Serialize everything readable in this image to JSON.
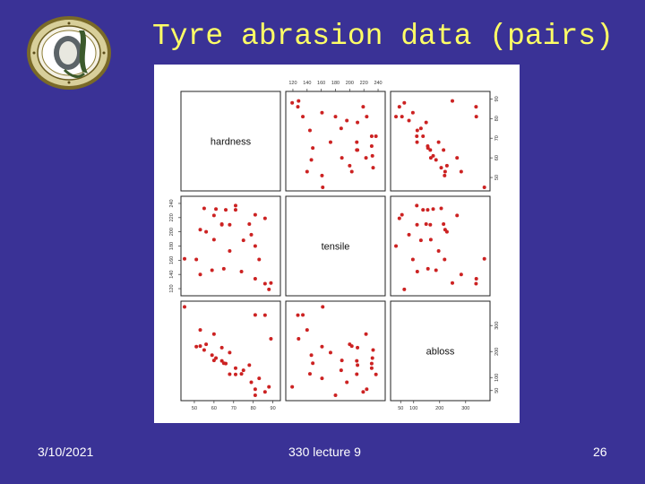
{
  "slide": {
    "title": "Tyre abrasion data (pairs)",
    "footer_date": "3/10/2021",
    "footer_center": "330 lecture 9",
    "footer_page": "26",
    "background_color": "#3a3296",
    "title_color": "#ffff66",
    "logo_icon": "university-crest-icon"
  },
  "chart_data": {
    "type": "scatter",
    "variables": [
      "hardness",
      "tensile",
      "abloss"
    ],
    "point_color": "#cc2222",
    "grid": false,
    "axes": {
      "hardness": {
        "ticks": [
          "50",
          "60",
          "70",
          "80",
          "90"
        ],
        "range": [
          45,
          92
        ]
      },
      "tensile": {
        "ticks": [
          "120",
          "140",
          "160",
          "180",
          "200",
          "220",
          "240"
        ],
        "range": [
          115,
          245
        ]
      },
      "abloss": {
        "ticks": [
          "50",
          "100",
          "200",
          "300"
        ],
        "range": [
          25,
          380
        ]
      }
    },
    "hardness": [
      45,
      55,
      61,
      66,
      71,
      71,
      81,
      86,
      53,
      60,
      64,
      68,
      79,
      81,
      56,
      68,
      75,
      83,
      88,
      89,
      51,
      59,
      65,
      74,
      81,
      86,
      53,
      60,
      64,
      78
    ],
    "tensile": [
      162,
      233,
      232,
      231,
      231,
      237,
      224,
      219,
      203,
      189,
      210,
      210,
      196,
      180,
      200,
      173,
      188,
      161,
      119,
      128,
      161,
      146,
      148,
      144,
      134,
      127,
      140,
      223,
      211,
      211
    ],
    "abloss": [
      372,
      206,
      175,
      154,
      136,
      112,
      55,
      45,
      221,
      166,
      164,
      113,
      82,
      32,
      228,
      196,
      128,
      97,
      64,
      249,
      219,
      186,
      155,
      114,
      341,
      340,
      283,
      267,
      215,
      148
    ]
  }
}
